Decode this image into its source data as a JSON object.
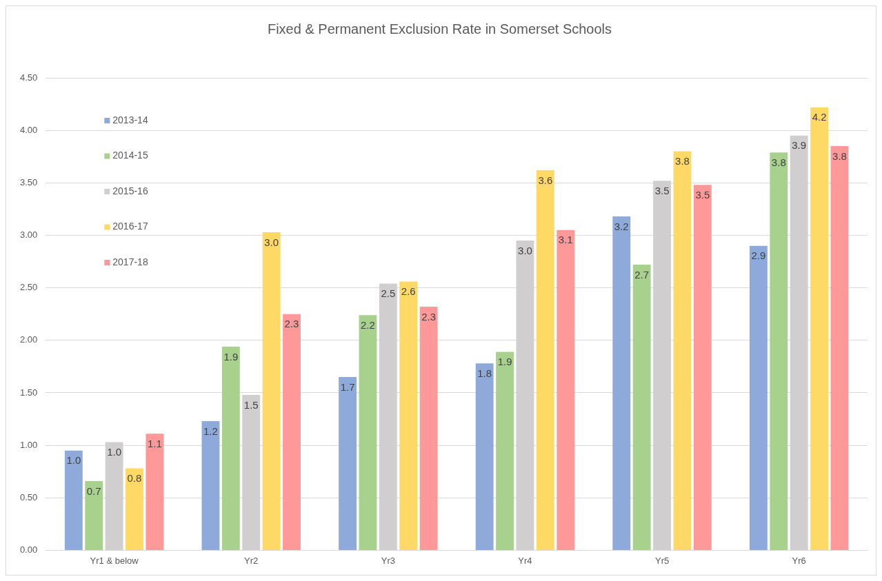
{
  "chart_data": {
    "type": "bar",
    "title": "Fixed & Permanent Exclusion Rate in Somerset Schools",
    "categories": [
      "Yr1 & below",
      "Yr2",
      "Yr3",
      "Yr4",
      "Yr5",
      "Yr6"
    ],
    "series": [
      {
        "name": "2013-14",
        "color": "#8eaadb",
        "values": [
          0.95,
          1.23,
          1.65,
          1.78,
          3.18,
          2.9
        ],
        "value_labels": [
          "1.0",
          "1.2",
          "1.7",
          "1.8",
          "3.2",
          "2.9"
        ]
      },
      {
        "name": "2014-15",
        "color": "#a9d18e",
        "values": [
          0.66,
          1.94,
          2.24,
          1.89,
          2.72,
          3.79
        ],
        "value_labels": [
          "0.7",
          "1.9",
          "2.2",
          "1.9",
          "2.7",
          "3.8"
        ]
      },
      {
        "name": "2015-16",
        "color": "#d0cece",
        "values": [
          1.03,
          1.48,
          2.54,
          2.95,
          3.52,
          3.95
        ],
        "value_labels": [
          "1.0",
          "1.5",
          "2.5",
          "3.0",
          "3.5",
          "3.9"
        ]
      },
      {
        "name": "2016-17",
        "color": "#ffd966",
        "values": [
          0.78,
          3.03,
          2.56,
          3.62,
          3.8,
          4.22
        ],
        "value_labels": [
          "0.8",
          "3.0",
          "2.6",
          "3.6",
          "3.8",
          "4.2"
        ]
      },
      {
        "name": "2017-18",
        "color": "#ff9999",
        "values": [
          1.11,
          2.25,
          2.32,
          3.05,
          3.48,
          3.85
        ],
        "value_labels": [
          "1.1",
          "2.3",
          "2.3",
          "3.1",
          "3.5",
          "3.8"
        ]
      }
    ],
    "ylim": [
      0,
      4.5
    ],
    "yticks": [
      {
        "value": 0,
        "label": "0.00"
      },
      {
        "value": 0.5,
        "label": "0.50"
      },
      {
        "value": 1,
        "label": "1.00"
      },
      {
        "value": 1.5,
        "label": "1.50"
      },
      {
        "value": 2,
        "label": "2.00"
      },
      {
        "value": 2.5,
        "label": "2.50"
      },
      {
        "value": 3,
        "label": "3.00"
      },
      {
        "value": 3.5,
        "label": "3.50"
      },
      {
        "value": 4,
        "label": "4.00"
      },
      {
        "value": 4.5,
        "label": "4.50"
      }
    ],
    "grid": "y",
    "legend": "top left"
  }
}
